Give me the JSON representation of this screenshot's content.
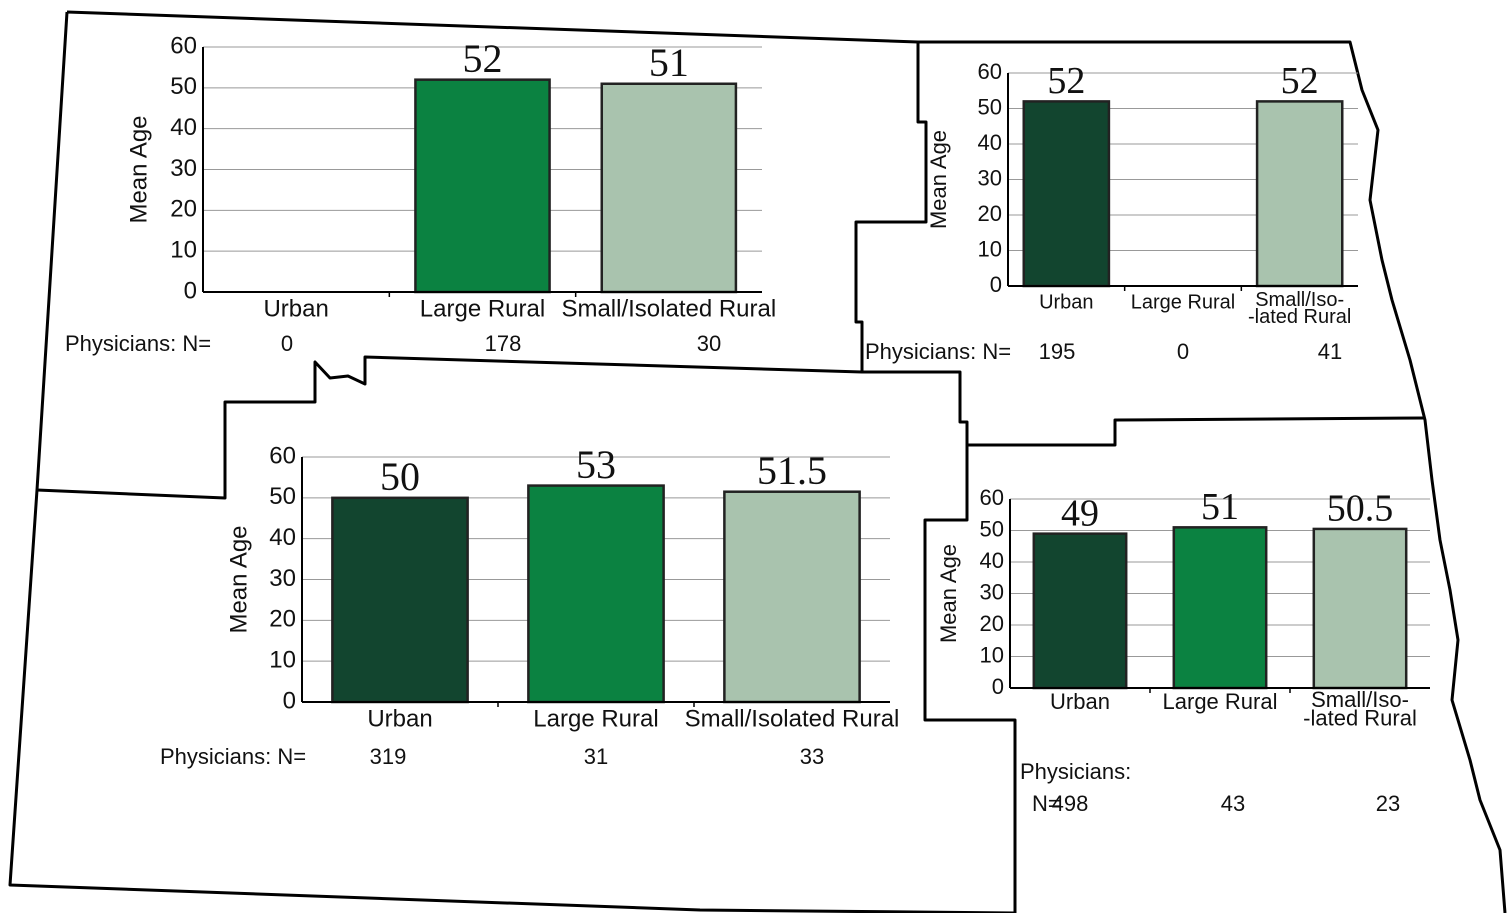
{
  "chart_data": [
    {
      "type": "bar",
      "y_label": "Mean Age",
      "categories": [
        "Urban",
        "Large Rural",
        "Small/Isolated Rural"
      ],
      "values": [
        null,
        52,
        51
      ],
      "colors": [
        "#12452f",
        "#0b8241",
        "#a9c3ae"
      ],
      "ylim": [
        0,
        60
      ],
      "yticks": [
        0,
        10,
        20,
        30,
        40,
        50,
        60
      ],
      "grid": true,
      "n_label": "Physicians: N=",
      "n_values": [
        0,
        178,
        30
      ]
    },
    {
      "type": "bar",
      "y_label": "Mean Age",
      "categories": [
        "Urban",
        "Large Rural",
        "Small/Iso-\n-lated  Rural"
      ],
      "values": [
        52,
        null,
        52
      ],
      "colors": [
        "#12452f",
        "#0b8241",
        "#a9c3ae"
      ],
      "ylim": [
        0,
        60
      ],
      "yticks": [
        0,
        10,
        20,
        30,
        40,
        50,
        60
      ],
      "grid": true,
      "n_label": "Physicians: N=",
      "n_values": [
        195,
        0,
        41
      ]
    },
    {
      "type": "bar",
      "y_label": "Mean Age",
      "categories": [
        "Urban",
        "Large Rural",
        "Small/Isolated Rural"
      ],
      "values": [
        50,
        53,
        51.5
      ],
      "colors": [
        "#12452f",
        "#0b8241",
        "#a9c3ae"
      ],
      "ylim": [
        0,
        60
      ],
      "yticks": [
        0,
        10,
        20,
        30,
        40,
        50,
        60
      ],
      "grid": true,
      "n_label": "Physicians: N=",
      "n_values": [
        319,
        31,
        33
      ]
    },
    {
      "type": "bar",
      "y_label": "Mean Age",
      "categories": [
        "Urban",
        "Large Rural",
        "Small/Iso-\n-lated  Rural"
      ],
      "values": [
        49,
        51,
        50.5
      ],
      "colors": [
        "#12452f",
        "#0b8241",
        "#a9c3ae"
      ],
      "ylim": [
        0,
        60
      ],
      "yticks": [
        0,
        10,
        20,
        30,
        40,
        50,
        60
      ],
      "grid": true,
      "n_label": "Physicians:",
      "n_prefix": "N=",
      "n_values": [
        498,
        43,
        23
      ]
    }
  ]
}
